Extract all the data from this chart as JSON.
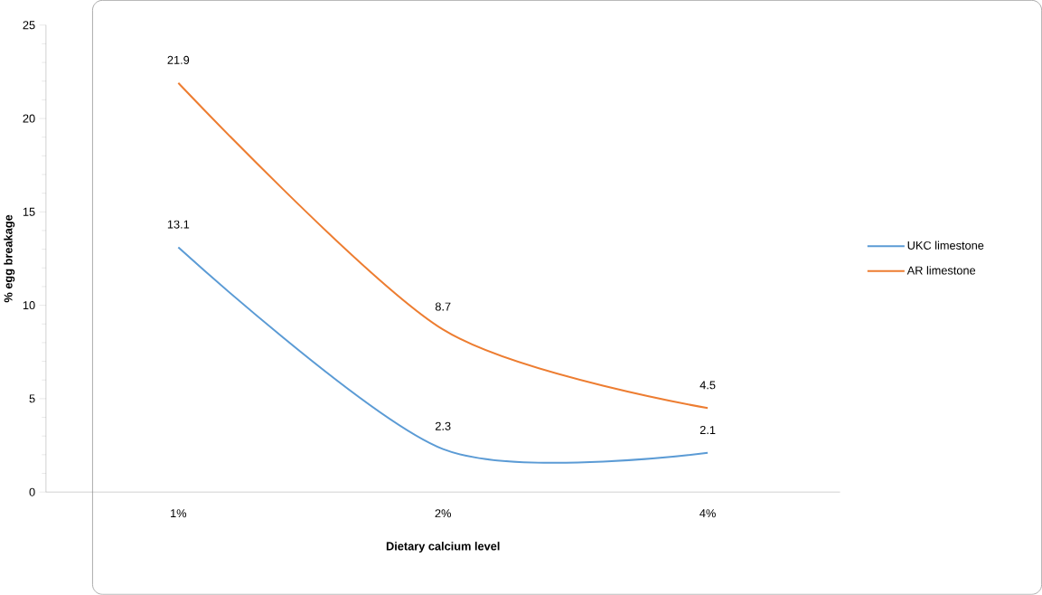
{
  "chart_data": {
    "type": "line",
    "xlabel": "Dietary calcium level",
    "ylabel": "% egg breakage",
    "categories": [
      "1%",
      "2%",
      "4%"
    ],
    "series": [
      {
        "name": "UKC limestone",
        "color": "#5b9bd5",
        "values": [
          13.1,
          2.3,
          2.1
        ]
      },
      {
        "name": "AR limestone",
        "color": "#ed7d31",
        "values": [
          21.9,
          8.7,
          4.5
        ]
      }
    ],
    "ylim": [
      0,
      25
    ],
    "yticks": [
      0,
      5,
      10,
      15,
      20,
      25
    ],
    "grid": false,
    "legend": "right",
    "data_labels": true,
    "marker": "none",
    "line_style": "solid"
  }
}
